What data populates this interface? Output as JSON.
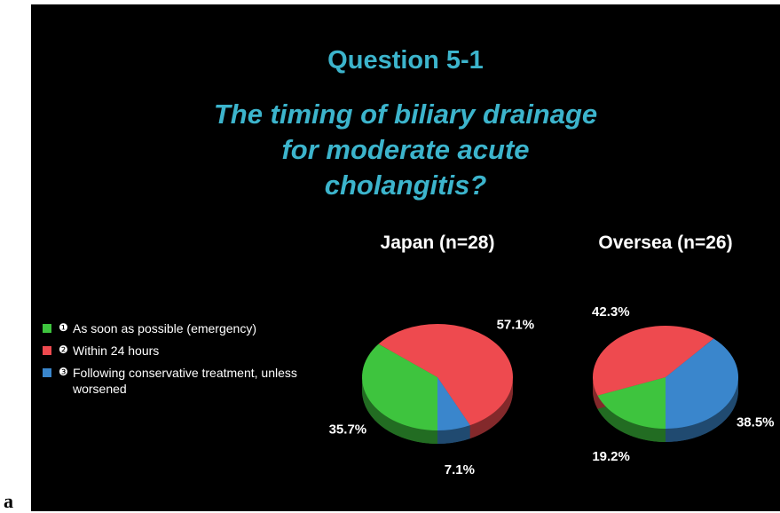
{
  "figure_label": "a",
  "slide": {
    "title": "Question 5-1",
    "subtitle": "The timing of biliary drainage for moderate acute cholangitis?"
  },
  "legend": {
    "items": [
      {
        "marker": "❶",
        "label": "As soon as possible (emergency)",
        "color": "#3ec43e"
      },
      {
        "marker": "❷",
        "label": "Within 24 hours",
        "color": "#ee4a4f"
      },
      {
        "marker": "❸",
        "label": "Following conservative treatment, unless worsened",
        "color": "#3a86cc"
      }
    ]
  },
  "chart_data": [
    {
      "type": "pie",
      "title": "Japan (n=28)",
      "values": [
        35.7,
        57.1,
        7.1
      ],
      "value_labels": [
        "35.7%",
        "57.1%",
        "7.1%"
      ]
    },
    {
      "type": "pie",
      "title": "Oversea (n=26)",
      "values": [
        19.2,
        42.3,
        38.5
      ],
      "value_labels": [
        "19.2%",
        "42.3%",
        "38.5%"
      ]
    }
  ]
}
